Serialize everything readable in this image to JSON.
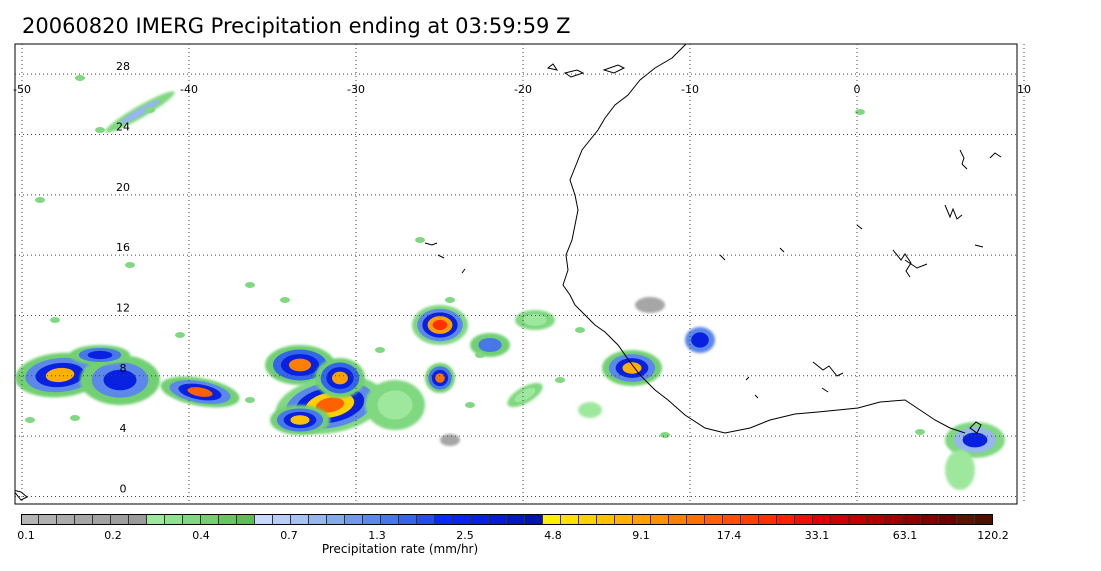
{
  "title": "20060820 IMERG Precipitation ending at 03:59:59 Z",
  "map": {
    "lon_ticks": [
      "-50",
      "-40",
      "-30",
      "-20",
      "-10",
      "0",
      "10"
    ],
    "lat_ticks": [
      "28",
      "24",
      "20",
      "16",
      "12",
      "8",
      "4",
      "0"
    ],
    "grid": "dotted",
    "extent": {
      "lon_min": -50,
      "lon_max": 10,
      "lat_min": -0.5,
      "lat_max": 30
    }
  },
  "colorbar": {
    "title": "Precipitation rate (mm/hr)",
    "labels": [
      "0.1",
      "0.2",
      "0.4",
      "0.7",
      "1.3",
      "2.5",
      "4.8",
      "9.1",
      "17.4",
      "33.1",
      "63.1",
      "120.2"
    ],
    "colors": [
      "#b4b4b4",
      "#b0b0b0",
      "#ababab",
      "#a6a6a6",
      "#a2a2a2",
      "#9e9e9e",
      "#9a9a9a",
      "#9ee89e",
      "#8fe08f",
      "#80d880",
      "#71d071",
      "#63c763",
      "#56bf56",
      "#c8d8ff",
      "#b8cef8",
      "#a7c2f2",
      "#96b6ec",
      "#84aaeb",
      "#7099eb",
      "#5c88ea",
      "#4877ea",
      "#3466ea",
      "#2050ea",
      "#0b28ff",
      "#0a24f0",
      "#0820e0",
      "#061cd0",
      "#0418c0",
      "#0214b0",
      "#fff000",
      "#ffe000",
      "#ffd000",
      "#ffc000",
      "#ffb000",
      "#ffa000",
      "#ff9000",
      "#ff8000",
      "#ff7000",
      "#ff6000",
      "#ff5000",
      "#ff4000",
      "#ff3000",
      "#ff2000",
      "#f01000",
      "#e00000",
      "#d00000",
      "#c00000",
      "#b00000",
      "#a00000",
      "#900000",
      "#800000",
      "#700000",
      "#601000",
      "#501000"
    ]
  }
}
